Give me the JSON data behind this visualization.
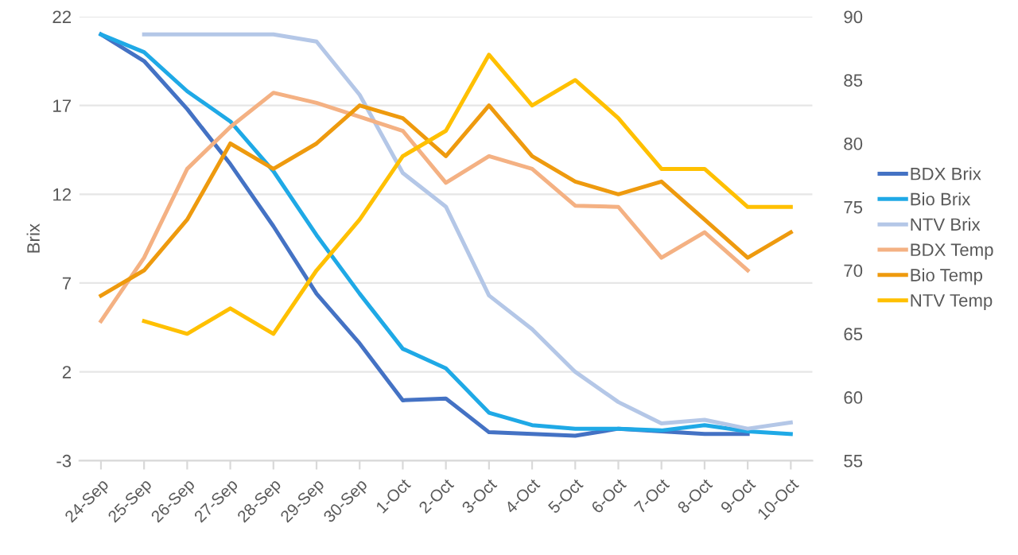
{
  "chart_data": {
    "type": "line",
    "ylabel": "Brix",
    "categories": [
      "24-Sep",
      "25-Sep",
      "26-Sep",
      "27-Sep",
      "28-Sep",
      "29-Sep",
      "30-Sep",
      "1-Oct",
      "2-Oct",
      "3-Oct",
      "4-Oct",
      "5-Oct",
      "6-Oct",
      "7-Oct",
      "8-Oct",
      "9-Oct",
      "10-Oct"
    ],
    "series": [
      {
        "name": "BDX Brix",
        "color": "#4472c4",
        "values": [
          21,
          19.5,
          16.8,
          13.7,
          10.2,
          6.4,
          3.6,
          0.4,
          0.5,
          -1.4,
          -1.5,
          -1.6,
          -1.2,
          -1.35,
          -1.5,
          -1.5,
          null
        ]
      },
      {
        "name": "Bio Brix",
        "color": "#1fa9e6",
        "values": [
          21,
          20.0,
          17.8,
          16.1,
          13.3,
          9.7,
          6.4,
          3.3,
          2.2,
          -0.3,
          -1.0,
          -1.2,
          -1.2,
          -1.3,
          -1.0,
          -1.35,
          -1.5
        ]
      },
      {
        "name": "NTV Brix",
        "color": "#b4c7e7",
        "values": [
          null,
          21,
          21,
          21,
          21,
          20.6,
          17.6,
          13.2,
          11.3,
          6.3,
          4.4,
          2.0,
          0.3,
          -0.9,
          -0.7,
          -1.2,
          -0.85
        ]
      },
      {
        "name": "BDX Temp",
        "color": "#f4b183",
        "axis": "y2",
        "values": [
          66,
          71,
          78,
          81.3,
          84,
          83.2,
          82.1,
          81,
          76.9,
          79,
          78,
          75.1,
          75,
          71,
          73,
          70,
          null
        ]
      },
      {
        "name": "Bio Temp",
        "color": "#ee9a0e",
        "axis": "y2",
        "values": [
          68,
          70,
          74,
          80,
          78,
          80,
          83,
          82,
          79,
          83,
          79,
          77,
          76,
          77,
          74,
          71,
          73
        ]
      },
      {
        "name": "NTV Temp",
        "color": "#ffc000",
        "axis": "y2",
        "values": [
          null,
          66,
          65,
          67,
          65,
          70,
          74,
          79,
          81,
          87,
          83,
          85,
          82,
          78,
          78,
          75,
          75
        ]
      }
    ],
    "ylim": [
      -3,
      22
    ],
    "yticks": [
      -3,
      2,
      7,
      12,
      17,
      22
    ],
    "y2lim": [
      55,
      90
    ],
    "y2ticks": [
      55,
      60,
      65,
      70,
      75,
      80,
      85,
      90
    ],
    "grid": "y",
    "legend": "right"
  }
}
